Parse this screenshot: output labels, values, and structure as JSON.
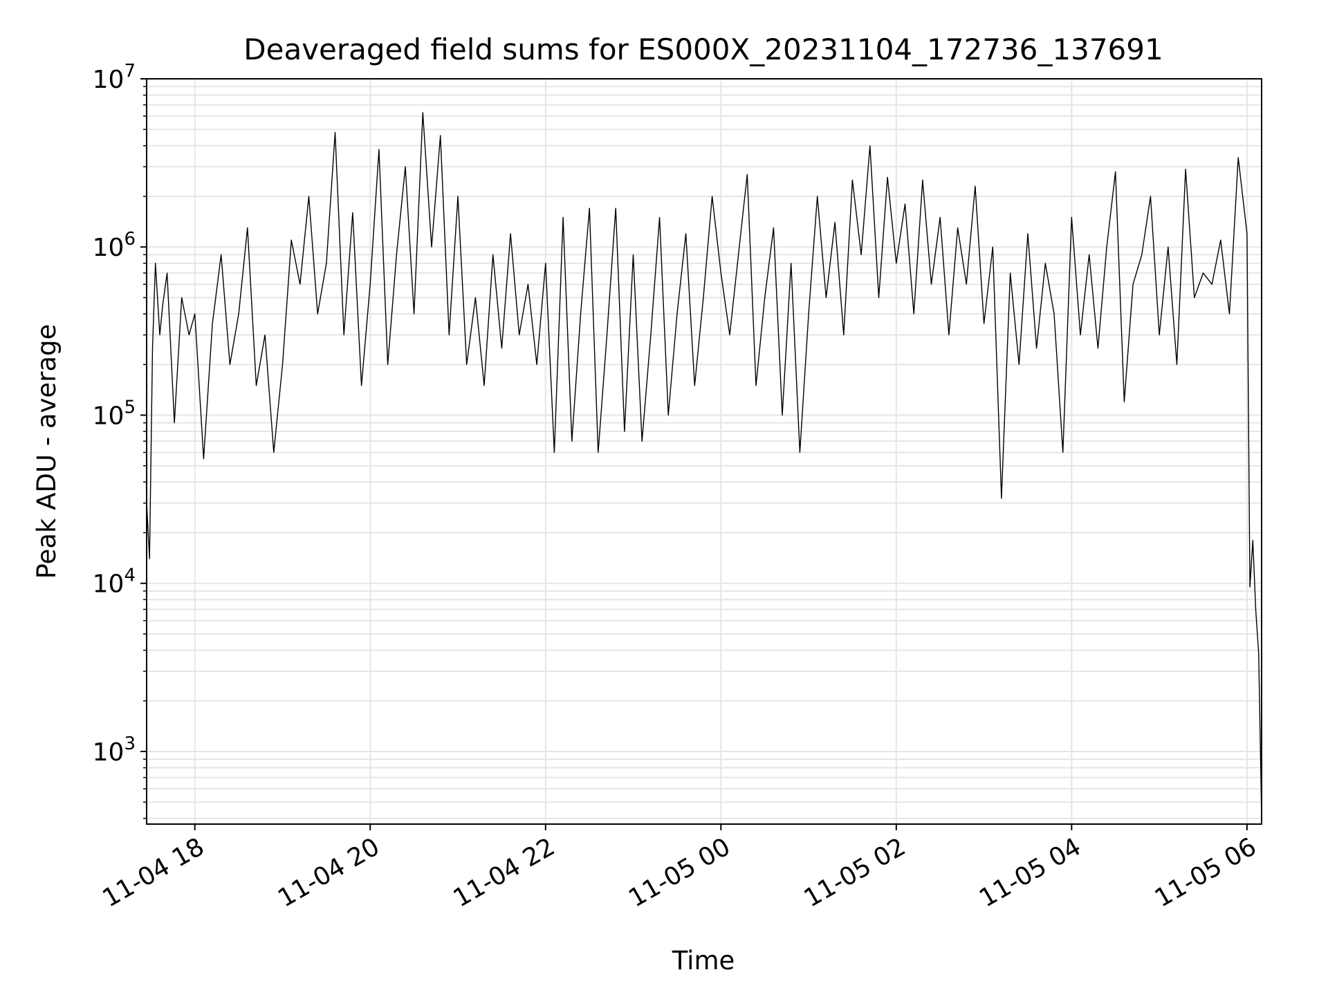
{
  "chart_data": {
    "type": "line",
    "title": "Deaveraged field sums for ES000X_20231104_172736_137691",
    "xlabel": "Time",
    "ylabel": "Peak ADU - average",
    "y_scale": "log",
    "ylim": [
      370,
      10000000
    ],
    "xlim": [
      "2023-11-04T17:27",
      "2023-11-05T06:10"
    ],
    "grid": true,
    "legend": "none",
    "colors": {
      "line": "#000000",
      "grid": "#e5e5e5",
      "axes": "#000000"
    },
    "x_ticks": [
      "11-04 18",
      "11-04 20",
      "11-04 22",
      "11-05 00",
      "11-05 02",
      "11-05 04",
      "11-05 06"
    ],
    "x_tick_values": [
      "2023-11-04T18:00",
      "2023-11-04T20:00",
      "2023-11-04T22:00",
      "2023-11-05T00:00",
      "2023-11-05T02:00",
      "2023-11-05T04:00",
      "2023-11-05T06:00"
    ],
    "y_ticks": [
      {
        "base": "10",
        "exp": "3",
        "value": 1000
      },
      {
        "base": "10",
        "exp": "4",
        "value": 10000
      },
      {
        "base": "10",
        "exp": "5",
        "value": 100000
      },
      {
        "base": "10",
        "exp": "6",
        "value": 1000000
      },
      {
        "base": "10",
        "exp": "7",
        "value": 10000000
      }
    ],
    "series": [
      {
        "x": [
          "2023-11-04T17:27",
          "2023-11-04T17:29",
          "2023-11-04T17:31",
          "2023-11-04T17:33",
          "2023-11-04T17:36",
          "2023-11-04T17:38",
          "2023-11-04T17:41",
          "2023-11-04T17:46",
          "2023-11-04T17:51",
          "2023-11-04T17:56",
          "2023-11-04T18:00",
          "2023-11-04T18:06",
          "2023-11-04T18:12",
          "2023-11-04T18:18",
          "2023-11-04T18:24",
          "2023-11-04T18:30",
          "2023-11-04T18:36",
          "2023-11-04T18:42",
          "2023-11-04T18:48",
          "2023-11-04T18:54",
          "2023-11-04T19:00",
          "2023-11-04T19:06",
          "2023-11-04T19:12",
          "2023-11-04T19:18",
          "2023-11-04T19:24",
          "2023-11-04T19:30",
          "2023-11-04T19:36",
          "2023-11-04T19:42",
          "2023-11-04T19:48",
          "2023-11-04T19:54",
          "2023-11-04T20:00",
          "2023-11-04T20:06",
          "2023-11-04T20:12",
          "2023-11-04T20:18",
          "2023-11-04T20:24",
          "2023-11-04T20:30",
          "2023-11-04T20:36",
          "2023-11-04T20:42",
          "2023-11-04T20:48",
          "2023-11-04T20:54",
          "2023-11-04T21:00",
          "2023-11-04T21:06",
          "2023-11-04T21:12",
          "2023-11-04T21:18",
          "2023-11-04T21:24",
          "2023-11-04T21:30",
          "2023-11-04T21:36",
          "2023-11-04T21:42",
          "2023-11-04T21:48",
          "2023-11-04T21:54",
          "2023-11-04T22:00",
          "2023-11-04T22:06",
          "2023-11-04T22:12",
          "2023-11-04T22:18",
          "2023-11-04T22:24",
          "2023-11-04T22:30",
          "2023-11-04T22:36",
          "2023-11-04T22:42",
          "2023-11-04T22:48",
          "2023-11-04T22:54",
          "2023-11-04T23:00",
          "2023-11-04T23:06",
          "2023-11-04T23:12",
          "2023-11-04T23:18",
          "2023-11-04T23:24",
          "2023-11-04T23:30",
          "2023-11-04T23:36",
          "2023-11-04T23:42",
          "2023-11-04T23:48",
          "2023-11-04T23:54",
          "2023-11-05T00:00",
          "2023-11-05T00:06",
          "2023-11-05T00:12",
          "2023-11-05T00:18",
          "2023-11-05T00:24",
          "2023-11-05T00:30",
          "2023-11-05T00:36",
          "2023-11-05T00:42",
          "2023-11-05T00:48",
          "2023-11-05T00:54",
          "2023-11-05T01:00",
          "2023-11-05T01:06",
          "2023-11-05T01:12",
          "2023-11-05T01:18",
          "2023-11-05T01:24",
          "2023-11-05T01:30",
          "2023-11-05T01:36",
          "2023-11-05T01:42",
          "2023-11-05T01:48",
          "2023-11-05T01:54",
          "2023-11-05T02:00",
          "2023-11-05T02:06",
          "2023-11-05T02:12",
          "2023-11-05T02:18",
          "2023-11-05T02:24",
          "2023-11-05T02:30",
          "2023-11-05T02:36",
          "2023-11-05T02:42",
          "2023-11-05T02:48",
          "2023-11-05T02:54",
          "2023-11-05T03:00",
          "2023-11-05T03:06",
          "2023-11-05T03:12",
          "2023-11-05T03:18",
          "2023-11-05T03:24",
          "2023-11-05T03:30",
          "2023-11-05T03:36",
          "2023-11-05T03:42",
          "2023-11-05T03:48",
          "2023-11-05T03:54",
          "2023-11-05T04:00",
          "2023-11-05T04:06",
          "2023-11-05T04:12",
          "2023-11-05T04:18",
          "2023-11-05T04:24",
          "2023-11-05T04:30",
          "2023-11-05T04:36",
          "2023-11-05T04:42",
          "2023-11-05T04:48",
          "2023-11-05T04:54",
          "2023-11-05T05:00",
          "2023-11-05T05:06",
          "2023-11-05T05:12",
          "2023-11-05T05:18",
          "2023-11-05T05:24",
          "2023-11-05T05:30",
          "2023-11-05T05:36",
          "2023-11-05T05:42",
          "2023-11-05T05:48",
          "2023-11-05T05:54",
          "2023-11-05T06:00",
          "2023-11-05T06:02",
          "2023-11-05T06:04",
          "2023-11-05T06:06",
          "2023-11-05T06:08",
          "2023-11-05T06:10"
        ],
        "y": [
          30000,
          14000,
          250000,
          800000,
          300000,
          450000,
          700000,
          90000,
          500000,
          300000,
          400000,
          55000,
          350000,
          900000,
          200000,
          400000,
          1300000,
          150000,
          300000,
          60000,
          200000,
          1100000,
          600000,
          2000000,
          400000,
          800000,
          4800000,
          300000,
          1600000,
          150000,
          600000,
          3800000,
          200000,
          900000,
          3000000,
          400000,
          6300000,
          1000000,
          4600000,
          300000,
          2000000,
          200000,
          500000,
          150000,
          900000,
          250000,
          1200000,
          300000,
          600000,
          200000,
          800000,
          60000,
          1500000,
          70000,
          400000,
          1700000,
          60000,
          300000,
          1700000,
          80000,
          900000,
          70000,
          300000,
          1500000,
          100000,
          400000,
          1200000,
          150000,
          500000,
          2000000,
          700000,
          300000,
          900000,
          2700000,
          150000,
          500000,
          1300000,
          100000,
          800000,
          60000,
          400000,
          2000000,
          500000,
          1400000,
          300000,
          2500000,
          900000,
          4000000,
          500000,
          2600000,
          800000,
          1800000,
          400000,
          2500000,
          600000,
          1500000,
          300000,
          1300000,
          600000,
          2300000,
          350000,
          1000000,
          32000,
          700000,
          200000,
          1200000,
          250000,
          800000,
          400000,
          60000,
          1500000,
          300000,
          900000,
          250000,
          1000000,
          2800000,
          120000,
          600000,
          900000,
          2000000,
          300000,
          1000000,
          200000,
          2900000,
          500000,
          700000,
          600000,
          1100000,
          400000,
          3400000,
          1200000,
          9500,
          18000,
          7000,
          3800,
          400
        ]
      }
    ]
  }
}
